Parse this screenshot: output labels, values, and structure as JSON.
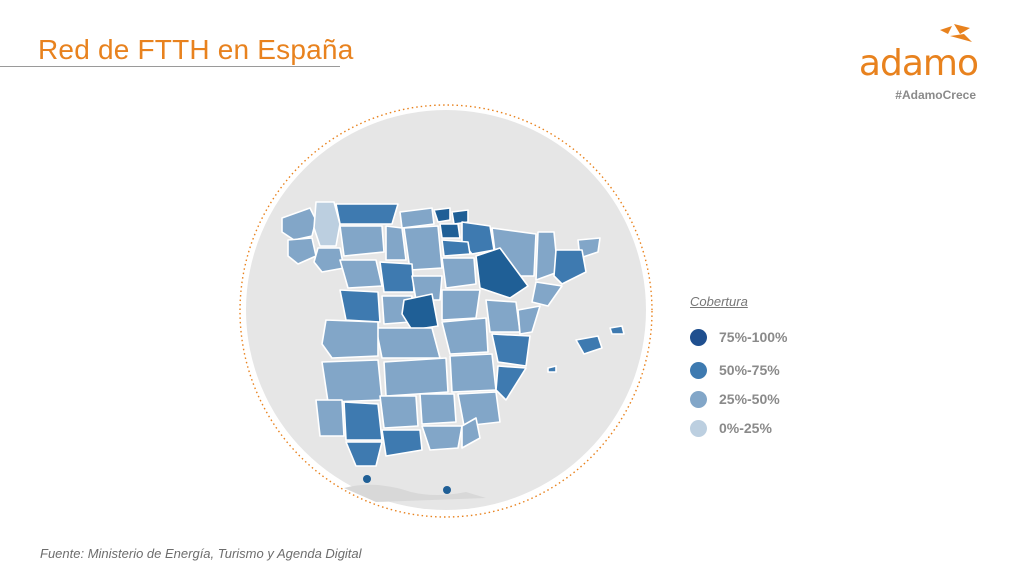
{
  "title": "Red de FTTH en España",
  "logo": {
    "text": "adamo",
    "tag": "#AdamoCrece",
    "color": "#e8821e"
  },
  "legend": {
    "title": "Cobertura",
    "items": [
      {
        "label": "75%-100%",
        "color": "#1f4f8f"
      },
      {
        "label": "50%-75%",
        "color": "#3e7ab0"
      },
      {
        "label": "25%-50%",
        "color": "#82a6c8"
      },
      {
        "label": "0%-25%",
        "color": "#bccfe0"
      }
    ]
  },
  "source": "Fuente: Ministerio de Energía, Turismo y Agenda Digital",
  "colors": {
    "accent": "#e8821e",
    "c100": "#1f5f96",
    "c75": "#3e7ab0",
    "c50": "#82a6c8",
    "c25": "#bccfe0",
    "circle_bg": "#e6e6e6"
  }
}
